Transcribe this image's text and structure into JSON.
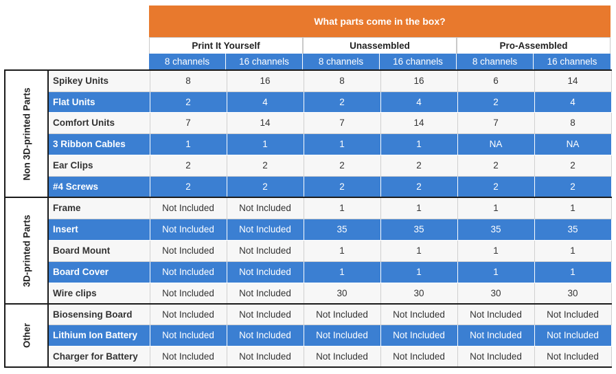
{
  "title": "What parts come in the box?",
  "groups": [
    "Print It Yourself",
    "Unassembled",
    "Pro-Assembled"
  ],
  "subcolumns": [
    "8 channels",
    "16 channels",
    "8 channels",
    "16 channels",
    "8 channels",
    "16 channels"
  ],
  "colors": {
    "title_bg": "#e8792d",
    "blue": "#3b7fd2",
    "light_row": "#f7f7f7"
  },
  "sections": [
    {
      "label": "Non 3D-printed Parts",
      "rows": [
        {
          "label": "Spikey Units",
          "values": [
            "8",
            "16",
            "8",
            "16",
            "6",
            "14"
          ]
        },
        {
          "label": "Flat Units",
          "values": [
            "2",
            "4",
            "2",
            "4",
            "2",
            "4"
          ]
        },
        {
          "label": "Comfort Units",
          "values": [
            "7",
            "14",
            "7",
            "14",
            "7",
            "8"
          ]
        },
        {
          "label": "3 Ribbon Cables",
          "values": [
            "1",
            "1",
            "1",
            "1",
            "NA",
            "NA"
          ]
        },
        {
          "label": "Ear Clips",
          "values": [
            "2",
            "2",
            "2",
            "2",
            "2",
            "2"
          ]
        },
        {
          "label": "#4 Screws",
          "values": [
            "2",
            "2",
            "2",
            "2",
            "2",
            "2"
          ]
        }
      ]
    },
    {
      "label": "3D-printed Parts",
      "rows": [
        {
          "label": "Frame",
          "values": [
            "Not Included",
            "Not Included",
            "1",
            "1",
            "1",
            "1"
          ]
        },
        {
          "label": "Insert",
          "values": [
            "Not Included",
            "Not Included",
            "35",
            "35",
            "35",
            "35"
          ]
        },
        {
          "label": "Board Mount",
          "values": [
            "Not Included",
            "Not Included",
            "1",
            "1",
            "1",
            "1"
          ]
        },
        {
          "label": "Board Cover",
          "values": [
            "Not Included",
            "Not Included",
            "1",
            "1",
            "1",
            "1"
          ]
        },
        {
          "label": "Wire clips",
          "values": [
            "Not Included",
            "Not Included",
            "30",
            "30",
            "30",
            "30"
          ]
        }
      ]
    },
    {
      "label": "Other",
      "rows": [
        {
          "label": "Biosensing Board",
          "values": [
            "Not Included",
            "Not Included",
            "Not Included",
            "Not Included",
            "Not Included",
            "Not Included"
          ]
        },
        {
          "label": "Lithium Ion Battery",
          "values": [
            "Not Included",
            "Not Included",
            "Not Included",
            "Not Included",
            "Not Included",
            "Not Included"
          ]
        },
        {
          "label": "Charger for Battery",
          "values": [
            "Not Included",
            "Not Included",
            "Not Included",
            "Not Included",
            "Not Included",
            "Not Included"
          ]
        }
      ]
    }
  ]
}
